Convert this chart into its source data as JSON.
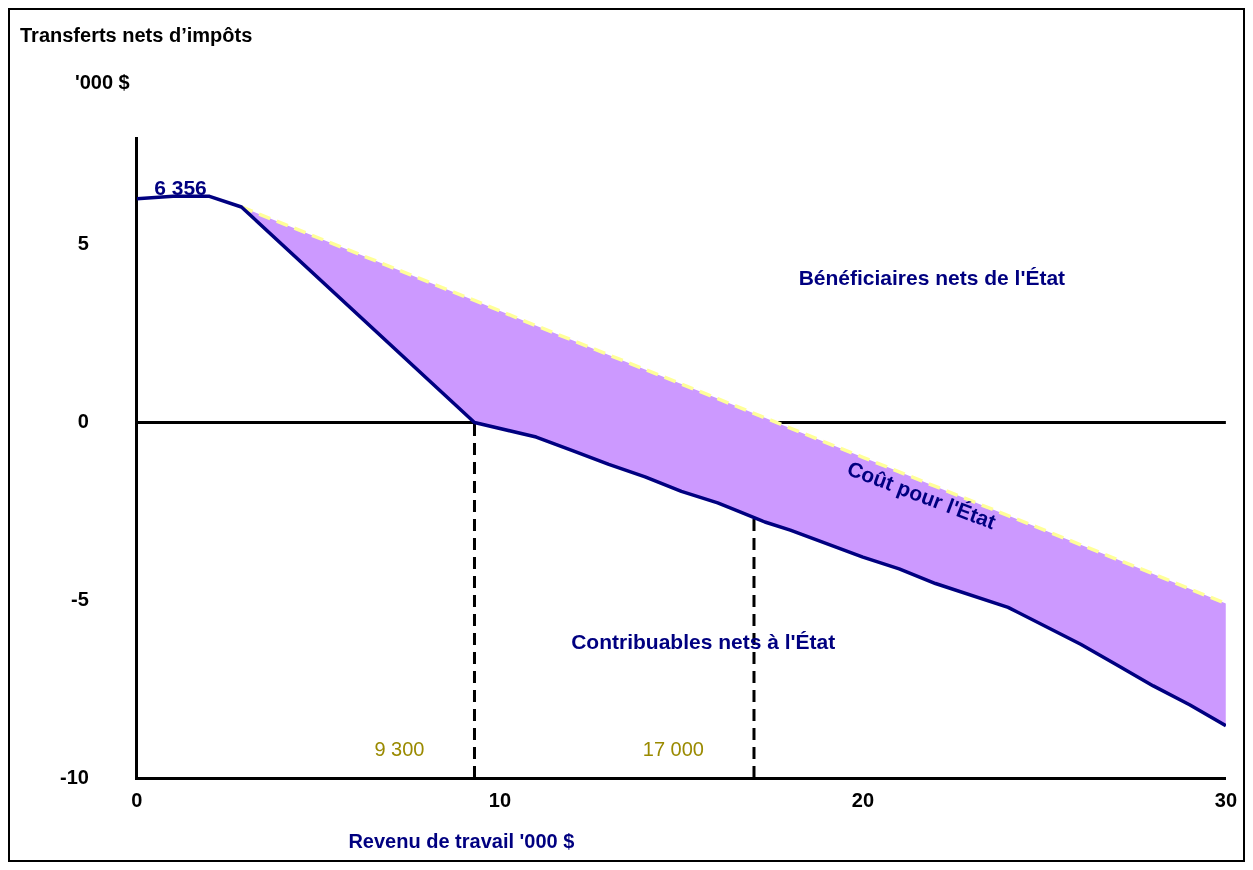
{
  "chart_data": {
    "type": "line",
    "title": "Transferts nets d’impôts",
    "ylabel": "'000 $",
    "xlabel": "Revenu de travail '000 $",
    "xlim": [
      0,
      30
    ],
    "xticks": [
      0,
      10,
      20,
      30
    ],
    "ylim": [
      -10,
      8
    ],
    "yticks": [
      -10,
      -5,
      0,
      5
    ],
    "grid": false,
    "legend": false,
    "series": [
      {
        "color": "#000080",
        "line_style": "solid",
        "x": [
          0,
          1,
          2,
          2.88,
          9.3,
          11,
          12,
          13,
          14,
          15,
          16,
          17.3,
          18,
          20,
          21,
          22,
          24,
          26,
          27,
          28,
          29,
          30
        ],
        "values": [
          6.29,
          6.36,
          6.36,
          6.06,
          0,
          -0.41,
          -0.79,
          -1.18,
          -1.53,
          -1.94,
          -2.26,
          -2.8,
          -3.03,
          -3.79,
          -4.12,
          -4.53,
          -5.2,
          -6.24,
          -6.82,
          -7.41,
          -7.94,
          -8.53
        ]
      },
      {
        "color": "#ffff99",
        "line_style": "dashed",
        "x": [
          2.88,
          9.3,
          11,
          12,
          13,
          14,
          15,
          16,
          17.3,
          18,
          20,
          21,
          22,
          24,
          26,
          27,
          28,
          29,
          30
        ],
        "values": [
          6.06,
          3.43,
          2.72,
          2.31,
          1.9,
          1.49,
          1.08,
          0.67,
          0.13,
          -0.16,
          -0.98,
          -1.39,
          -1.8,
          -2.62,
          -3.44,
          -3.85,
          -4.26,
          -4.68,
          -5.09
        ],
        "upper": [
          6.06,
          3.43,
          2.72,
          2.31,
          1.9,
          1.49,
          1.08,
          0.67,
          0.13,
          -0.16,
          -0.98,
          -1.39,
          -1.8,
          -2.62,
          -3.44,
          -3.85,
          -4.26,
          -4.68,
          -5.09
        ],
        "lower": [
          6.06,
          0,
          -0.41,
          -0.79,
          -1.18,
          -1.53,
          -1.94,
          -2.26,
          -2.8,
          -3.03,
          -3.79,
          -4.12,
          -4.53,
          -5.2,
          -6.24,
          -6.82,
          -7.41,
          -7.94,
          -8.53
        ]
      }
    ],
    "ref_lines": [
      {
        "axis": "y",
        "value": 0,
        "color": "#000000",
        "line_style": "solid"
      },
      {
        "axis": "x",
        "value": 9.3,
        "label": "9 300",
        "color": "#000000",
        "line_style": "dashed"
      },
      {
        "axis": "x",
        "value": 17,
        "label": "17 000",
        "color": "#000000",
        "line_style": "dashed"
      }
    ],
    "annotations": [
      "6 356",
      "Bénéficiaires nets de l'État",
      "Coût pour l'État",
      "Contribuables nets à l'État"
    ]
  }
}
